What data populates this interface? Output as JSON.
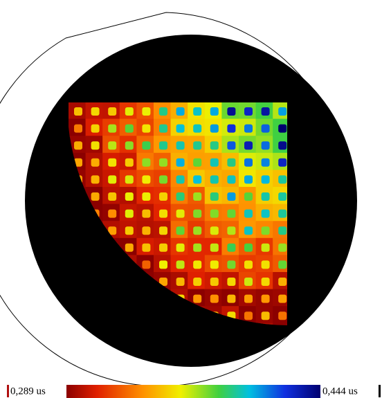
{
  "colorbar": {
    "min_label": "0,289 us",
    "max_label": "0,444 us"
  }
}
